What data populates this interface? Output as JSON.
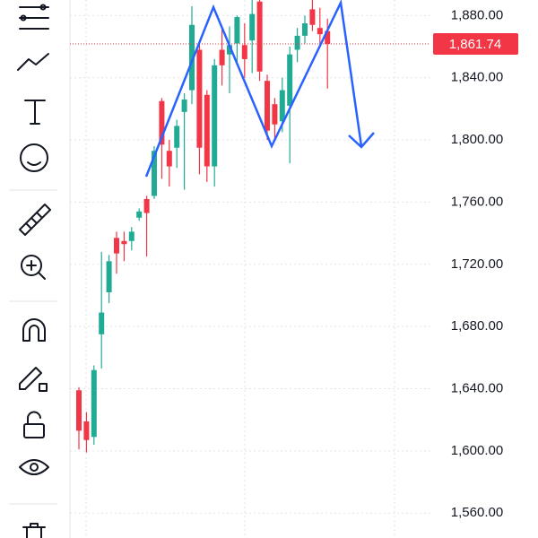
{
  "chart_data": {
    "type": "candlestick",
    "open": [
      1639,
      1619,
      1609,
      1675,
      1702,
      1737,
      1735,
      1735,
      1750,
      1762,
      1764,
      1825,
      1793,
      1795,
      1818,
      1832,
      1858,
      1829,
      1783,
      1858,
      1855,
      1862,
      1861,
      1864,
      1889,
      1838,
      1823,
      1812,
      1822,
      1858,
      1867,
      1884,
      1872,
      1870
    ],
    "high": [
      1641,
      1625,
      1655,
      1728,
      1726,
      1741,
      1741,
      1744,
      1756,
      1764,
      1796,
      1827,
      1800,
      1813,
      1830,
      1886,
      1862,
      1832,
      1852,
      1872,
      1873,
      1880,
      1875,
      1890,
      1893,
      1842,
      1827,
      1840,
      1860,
      1872,
      1880,
      1890,
      1885,
      1878
    ],
    "low": [
      1601,
      1599,
      1604,
      1653,
      1695,
      1714,
      1722,
      1729,
      1748,
      1725,
      1762,
      1775,
      1770,
      1782,
      1768,
      1823,
      1778,
      1773,
      1770,
      1835,
      1830,
      1848,
      1840,
      1843,
      1838,
      1800,
      1800,
      1805,
      1785,
      1850,
      1862,
      1870,
      1860,
      1833
    ],
    "close": [
      1613,
      1607,
      1652,
      1689,
      1722,
      1727,
      1733,
      1741,
      1754,
      1753,
      1793,
      1797,
      1783,
      1809,
      1826,
      1874,
      1795,
      1783,
      1848,
      1848,
      1861,
      1879,
      1852,
      1881,
      1844,
      1806,
      1810,
      1832,
      1855,
      1867,
      1875,
      1874,
      1868,
      1861.74
    ],
    "up_color": "#22ab94",
    "down_color": "#f23645",
    "ylim": [
      1544,
      1890
    ],
    "yticks": [
      {
        "value": 1560,
        "label": "1,560.00"
      },
      {
        "value": 1600,
        "label": "1,600.00"
      },
      {
        "value": 1640,
        "label": "1,640.00"
      },
      {
        "value": 1680,
        "label": "1,680.00"
      },
      {
        "value": 1720,
        "label": "1,720.00"
      },
      {
        "value": 1760,
        "label": "1,760.00"
      },
      {
        "value": 1800,
        "label": "1,800.00"
      },
      {
        "value": 1840,
        "label": "1,840.00"
      },
      {
        "value": 1880,
        "label": "1,880.00"
      }
    ],
    "grid": true,
    "last_price": {
      "value": 1861.74,
      "label": "1,861.74"
    }
  }
}
